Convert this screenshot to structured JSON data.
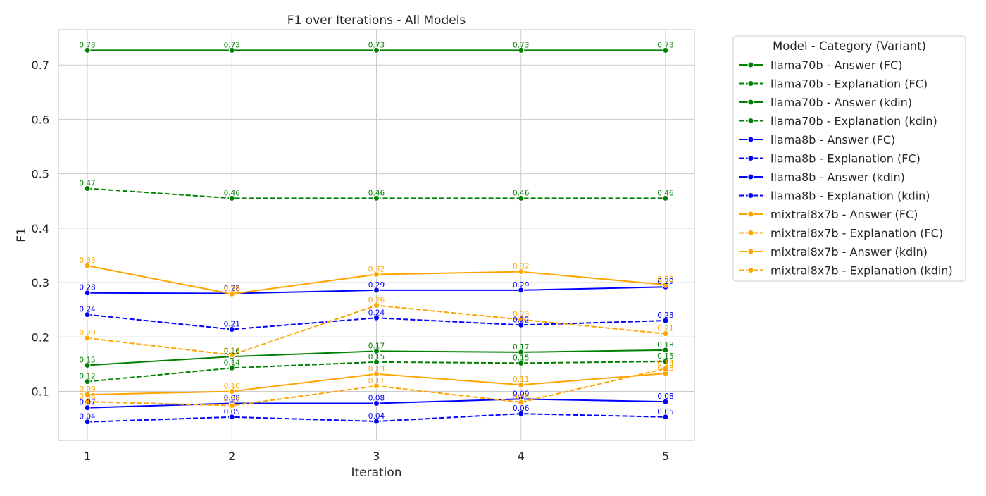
{
  "chart_data": {
    "type": "line",
    "title": "F1 over Iterations - All Models",
    "xlabel": "Iteration",
    "ylabel": "F1",
    "x": [
      1,
      2,
      3,
      4,
      5
    ],
    "xlim": [
      0.8,
      5.2
    ],
    "ylim": [
      0.01,
      0.765
    ],
    "yticks": [
      0.1,
      0.2,
      0.3,
      0.4,
      0.5,
      0.6,
      0.7
    ],
    "ytick_labels": [
      "0.1",
      "0.2",
      "0.3",
      "0.4",
      "0.5",
      "0.6",
      "0.7"
    ],
    "xtick_labels": [
      "1",
      "2",
      "3",
      "4",
      "5"
    ],
    "grid": true,
    "legend": {
      "title": "Model - Category (Variant)",
      "placement": "outside-top-right"
    },
    "series": [
      {
        "name": "llama70b - Answer (FC)",
        "color": "#008000",
        "dash": "solid",
        "values": [
          0.727,
          0.727,
          0.727,
          0.727,
          0.727
        ],
        "labels": [
          "0.73",
          "0.73",
          "0.73",
          "0.73",
          "0.73"
        ]
      },
      {
        "name": "llama70b - Explanation (FC)",
        "color": "#008000",
        "dash": "dashed",
        "values": [
          0.473,
          0.455,
          0.455,
          0.455,
          0.455
        ],
        "labels": [
          "0.47",
          "0.46",
          "0.46",
          "0.46",
          "0.46"
        ]
      },
      {
        "name": "llama70b - Answer (kdin)",
        "color": "#008000",
        "dash": "solid",
        "values": [
          0.148,
          0.164,
          0.174,
          0.172,
          0.176
        ],
        "labels": [
          "0.15",
          "0.16",
          "0.17",
          "0.17",
          "0.18"
        ]
      },
      {
        "name": "llama70b - Explanation (kdin)",
        "color": "#008000",
        "dash": "dashed",
        "values": [
          0.118,
          0.143,
          0.154,
          0.152,
          0.155
        ],
        "labels": [
          "0.12",
          "0.14",
          "0.15",
          "0.15",
          "0.15"
        ]
      },
      {
        "name": "llama8b - Answer (FC)",
        "color": "#0000ff",
        "dash": "solid",
        "values": [
          0.281,
          0.28,
          0.286,
          0.286,
          0.292
        ],
        "labels": [
          "0.28",
          "0.28",
          "0.29",
          "0.29",
          "0.29"
        ]
      },
      {
        "name": "llama8b - Explanation (FC)",
        "color": "#0000ff",
        "dash": "dashed",
        "values": [
          0.241,
          0.214,
          0.235,
          0.222,
          0.23
        ],
        "labels": [
          "0.24",
          "0.21",
          "0.24",
          "0.22",
          "0.23"
        ]
      },
      {
        "name": "llama8b - Answer (kdin)",
        "color": "#0000ff",
        "dash": "solid",
        "values": [
          0.07,
          0.078,
          0.078,
          0.086,
          0.081
        ],
        "labels": [
          "0.07",
          "0.08",
          "0.08",
          "0.09",
          "0.08"
        ]
      },
      {
        "name": "llama8b - Explanation (kdin)",
        "color": "#0000ff",
        "dash": "dashed",
        "values": [
          0.044,
          0.053,
          0.045,
          0.059,
          0.053
        ],
        "labels": [
          "0.04",
          "0.05",
          "0.04",
          "0.06",
          "0.05"
        ]
      },
      {
        "name": "mixtral8x7b - Answer (FC)",
        "color": "#ffa500",
        "dash": "solid",
        "values": [
          0.331,
          0.279,
          0.315,
          0.32,
          0.296
        ],
        "labels": [
          "0.33",
          "0.28",
          "0.32",
          "0.32",
          "0.30"
        ]
      },
      {
        "name": "mixtral8x7b - Explanation (FC)",
        "color": "#ffa500",
        "dash": "dashed",
        "values": [
          0.198,
          0.167,
          0.258,
          0.232,
          0.206
        ],
        "labels": [
          "0.20",
          "0.17",
          "0.26",
          "0.23",
          "0.21"
        ]
      },
      {
        "name": "mixtral8x7b - Answer (kdin)",
        "color": "#ffa500",
        "dash": "solid",
        "values": [
          0.094,
          0.1,
          0.132,
          0.112,
          0.133
        ],
        "labels": [
          "0.09",
          "0.10",
          "0.13",
          "0.11",
          "0.13"
        ]
      },
      {
        "name": "mixtral8x7b - Explanation (kdin)",
        "color": "#ffa500",
        "dash": "dashed",
        "values": [
          0.081,
          0.074,
          0.11,
          0.08,
          0.142
        ],
        "labels": [
          "0.08",
          "0.07",
          "0.11",
          "0.08",
          "0.14"
        ]
      }
    ]
  }
}
